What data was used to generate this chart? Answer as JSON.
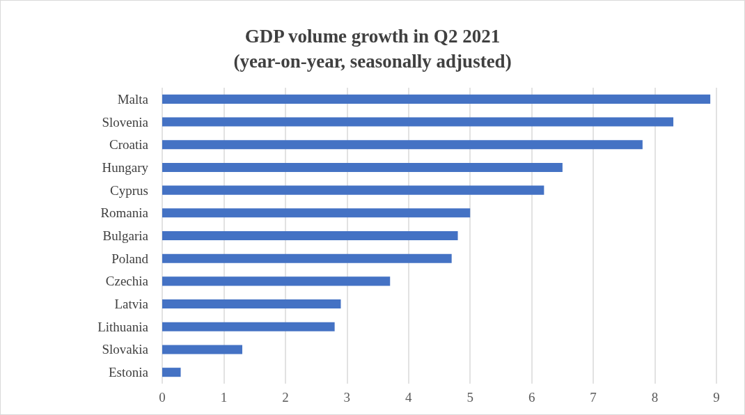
{
  "chart_data": {
    "type": "bar",
    "orientation": "horizontal",
    "title": "GDP volume growth in Q2 2021\n(year-on-year, seasonally adjusted)",
    "categories": [
      "Malta",
      "Slovenia",
      "Croatia",
      "Hungary",
      "Cyprus",
      "Romania",
      "Bulgaria",
      "Poland",
      "Czechia",
      "Latvia",
      "Lithuania",
      "Slovakia",
      "Estonia"
    ],
    "values": [
      8.9,
      8.3,
      7.8,
      6.5,
      6.2,
      5.0,
      4.8,
      4.7,
      3.7,
      2.9,
      2.8,
      1.3,
      0.3
    ],
    "color": "#4472c4",
    "xlim": [
      0,
      9
    ],
    "xticks": [
      0,
      1,
      2,
      3,
      4,
      5,
      6,
      7,
      8,
      9
    ],
    "grid": "x"
  }
}
